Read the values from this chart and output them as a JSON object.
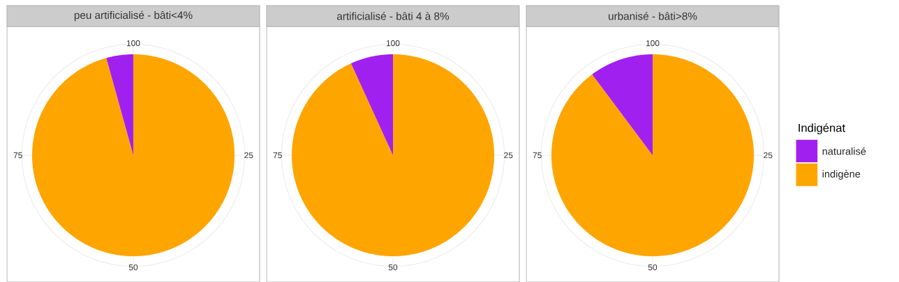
{
  "chart_data": [
    {
      "type": "pie",
      "title": "peu artificialisé - bâti<4%",
      "values": [
        4.3,
        95.7
      ],
      "colors": [
        "#a020f0",
        "#ffa500"
      ],
      "annotations": [
        "100",
        "25",
        "50",
        "75"
      ],
      "grid": true
    },
    {
      "type": "pie",
      "title": "artificialisé - bâti 4 à 8%",
      "values": [
        6.8,
        93.2
      ],
      "colors": [
        "#a020f0",
        "#ffa500"
      ],
      "annotations": [
        "100",
        "25",
        "50",
        "75"
      ],
      "grid": true
    },
    {
      "type": "pie",
      "title": "urbanisé - bâti>8%",
      "categories": [
        "naturalisé",
        "indigène"
      ],
      "values": [
        10.2,
        89.8
      ],
      "colors": [
        "#a020f0",
        "#ffa500"
      ],
      "annotations": [
        "100",
        "25",
        "50",
        "75"
      ],
      "grid": true,
      "legend": "right",
      "legend_title": "Indigénat"
    }
  ]
}
